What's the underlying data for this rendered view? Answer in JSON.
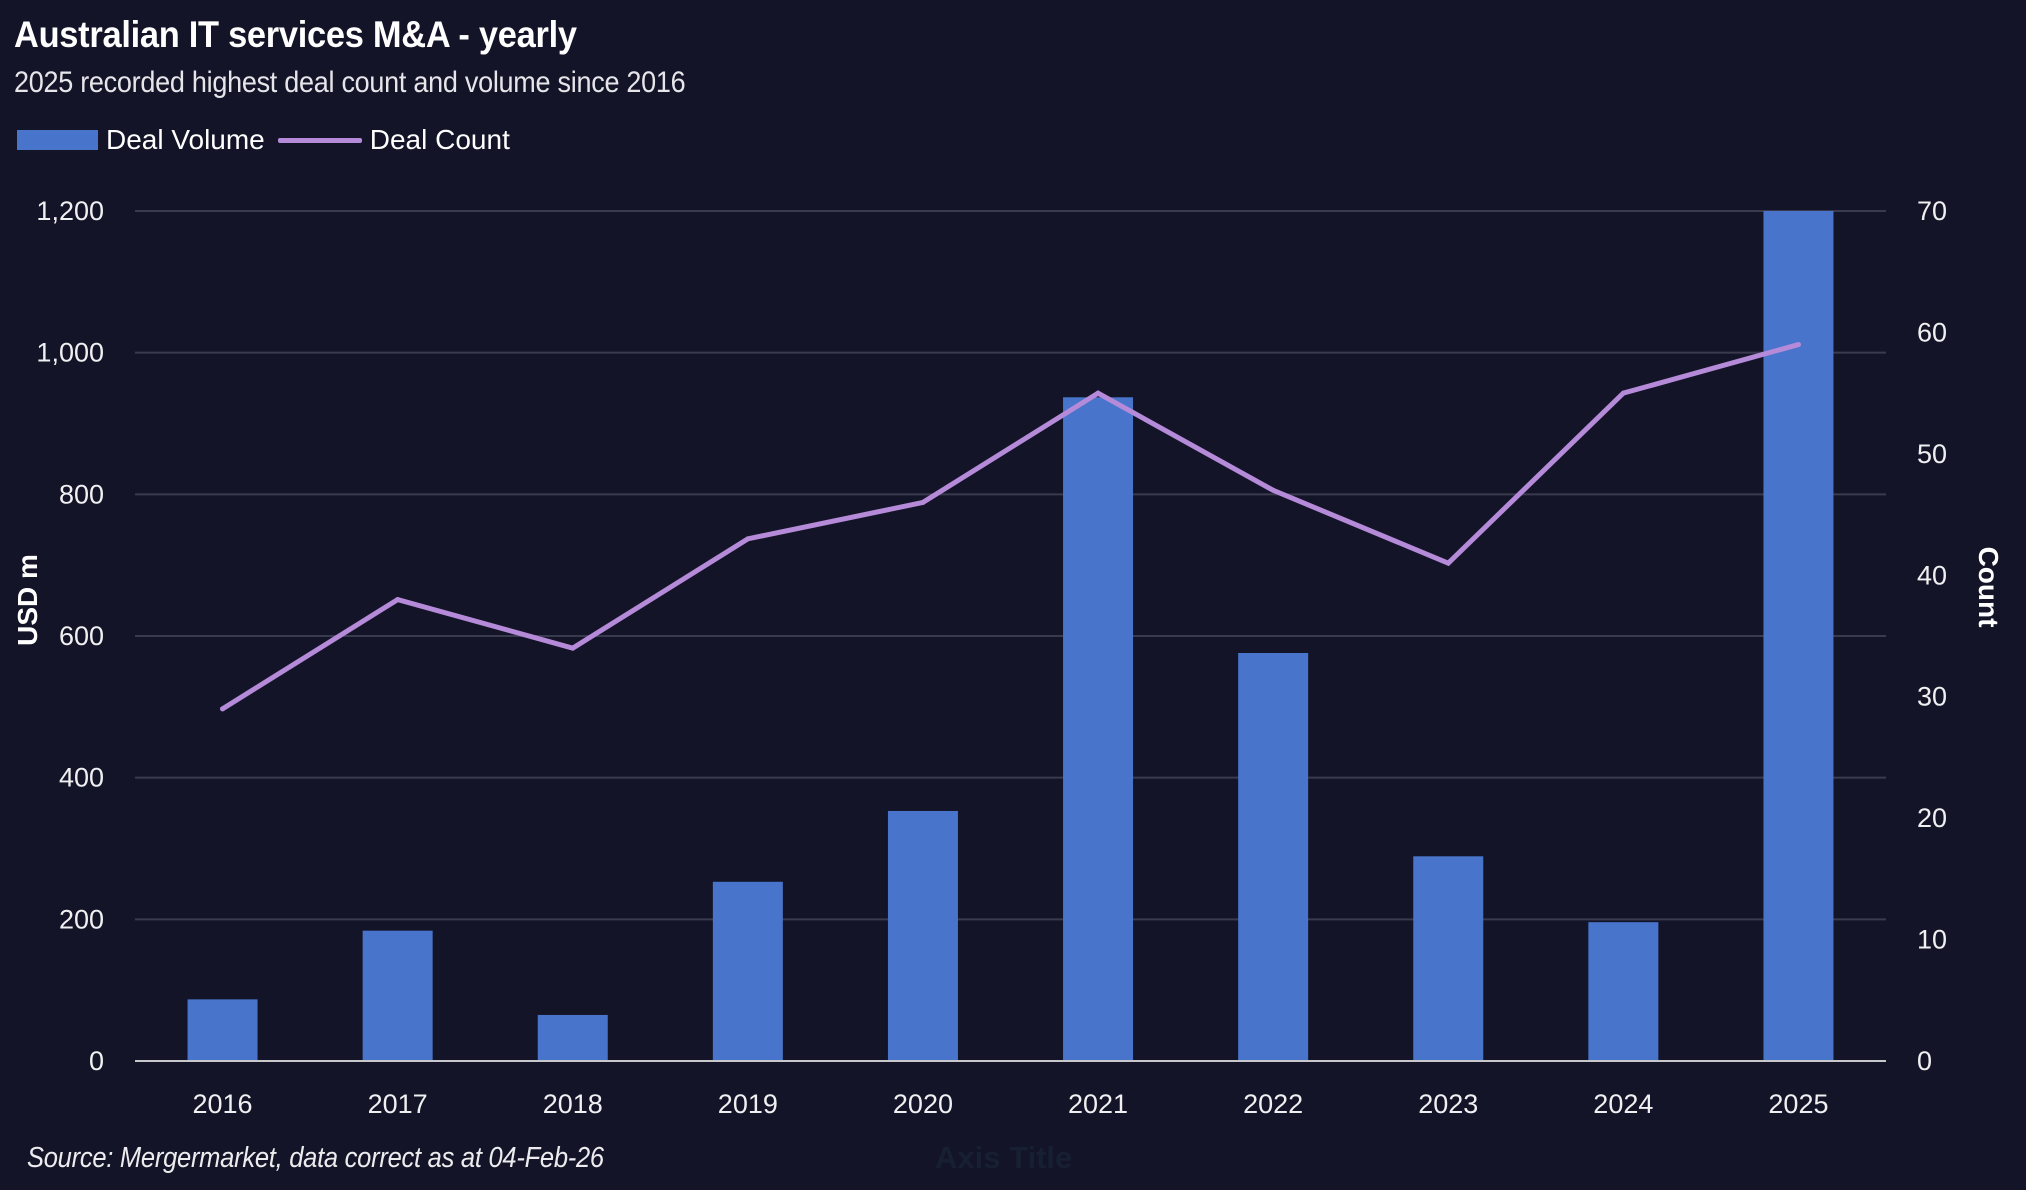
{
  "header": {
    "title": "Australian IT services M&A - yearly",
    "subtitle": "2025 recorded highest deal count and volume since 2016"
  },
  "legend": {
    "items": [
      {
        "label": "Deal Volume",
        "type": "bar",
        "color": "#4874CB"
      },
      {
        "label": "Deal Count",
        "type": "line",
        "color": "#B58AD9"
      }
    ]
  },
  "footer": {
    "source": "Source: Mergermarket, data correct as at 04-Feb-26",
    "ghost_axis_title": "Axis Title"
  },
  "colors": {
    "background": "#141428",
    "bar": "#4874CB",
    "line": "#B58AD9",
    "gridline": "#3a3a4e",
    "baseline": "#c8c8cc"
  },
  "chart_data": {
    "type": "bar",
    "combo": "bar+line (dual axis)",
    "title": "Australian IT services M&A - yearly",
    "subtitle": "2025 recorded highest deal count and volume since 2016",
    "categories": [
      "2016",
      "2017",
      "2018",
      "2019",
      "2020",
      "2021",
      "2022",
      "2023",
      "2024",
      "2025"
    ],
    "series": [
      {
        "name": "Deal Volume",
        "type": "bar",
        "axis": "left",
        "values": [
          87,
          184,
          65,
          253,
          353,
          937,
          576,
          289,
          196,
          1200
        ]
      },
      {
        "name": "Deal Count",
        "type": "line",
        "axis": "right",
        "values": [
          29,
          38,
          34,
          43,
          46,
          55,
          47,
          41,
          55,
          59
        ]
      }
    ],
    "xlabel": "",
    "ylabel": "USD m",
    "y2label": "Count",
    "ylim": [
      0,
      1200
    ],
    "y2lim": [
      0,
      70
    ],
    "yticks": [
      0,
      200,
      400,
      600,
      800,
      1000,
      1200
    ],
    "ytick_labels": [
      "0",
      "200",
      "400",
      "600",
      "800",
      "1,000",
      "1,200"
    ],
    "y2ticks": [
      0,
      10,
      20,
      30,
      40,
      50,
      60,
      70
    ],
    "y2tick_labels": [
      "0",
      "10",
      "20",
      "30",
      "40",
      "50",
      "60",
      "70"
    ],
    "grid": true,
    "legend_position": "top-left",
    "notes": "2025 Deal Volume bar reaches the top of the axis (1,200)"
  }
}
